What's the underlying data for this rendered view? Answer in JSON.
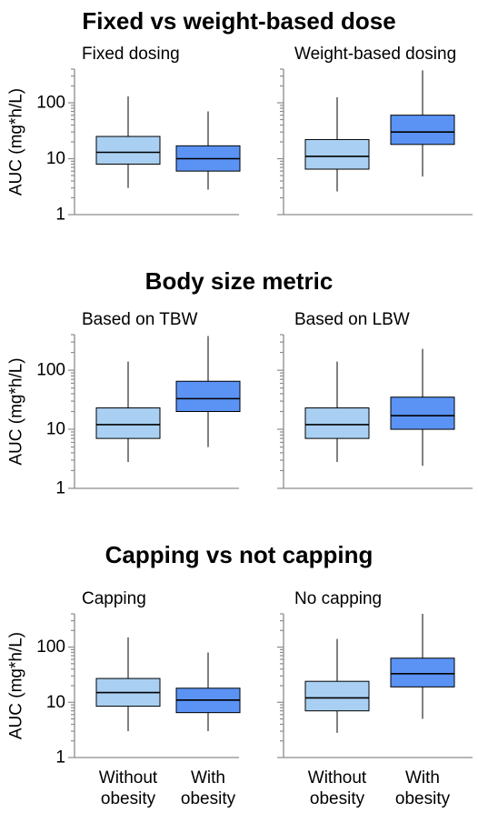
{
  "colors": {
    "without": "#a9d0f2",
    "with": "#5b93f5",
    "line": "#000000",
    "axis": "#8c8c8c"
  },
  "chart_data": [
    {
      "type": "box",
      "section_title": "Fixed vs weight-based dose",
      "title": "Fixed dosing",
      "ylabel": "AUC (mg*h/L)",
      "yscale": "log",
      "ylim": [
        1,
        400
      ],
      "yticks": [
        "1",
        "10",
        "100"
      ],
      "categories": [
        "Without obesity",
        "With obesity"
      ],
      "boxes": [
        {
          "name": "Without obesity",
          "min": 3,
          "q1": 8,
          "median": 13,
          "q3": 25,
          "max": 130
        },
        {
          "name": "With obesity",
          "min": 2.8,
          "q1": 6,
          "median": 10,
          "q3": 17,
          "max": 70
        }
      ]
    },
    {
      "type": "box",
      "title": "Weight-based dosing",
      "ylabel": "",
      "yscale": "log",
      "ylim": [
        1,
        400
      ],
      "yticks": [],
      "categories": [
        "Without obesity",
        "With obesity"
      ],
      "boxes": [
        {
          "name": "Without obesity",
          "min": 2.6,
          "q1": 6.5,
          "median": 11,
          "q3": 22,
          "max": 125
        },
        {
          "name": "With obesity",
          "min": 4.8,
          "q1": 18,
          "median": 30,
          "q3": 60,
          "max": 380
        }
      ]
    },
    {
      "type": "box",
      "section_title": "Body size metric",
      "title": "Based on TBW",
      "ylabel": "AUC (mg*h/L)",
      "yscale": "log",
      "ylim": [
        1,
        400
      ],
      "yticks": [
        "1",
        "10",
        "100"
      ],
      "categories": [
        "Without obesity",
        "With obesity"
      ],
      "boxes": [
        {
          "name": "Without obesity",
          "min": 2.8,
          "q1": 7,
          "median": 12,
          "q3": 23,
          "max": 140
        },
        {
          "name": "With obesity",
          "min": 5,
          "q1": 20,
          "median": 33,
          "q3": 65,
          "max": 380
        }
      ]
    },
    {
      "type": "box",
      "title": "Based on LBW",
      "ylabel": "",
      "yscale": "log",
      "ylim": [
        1,
        400
      ],
      "yticks": [],
      "categories": [
        "Without obesity",
        "With obesity"
      ],
      "boxes": [
        {
          "name": "Without obesity",
          "min": 2.8,
          "q1": 7,
          "median": 12,
          "q3": 23,
          "max": 140
        },
        {
          "name": "With obesity",
          "min": 2.4,
          "q1": 10,
          "median": 17,
          "q3": 35,
          "max": 230
        }
      ]
    },
    {
      "type": "box",
      "section_title": "Capping vs not capping",
      "title": "Capping",
      "ylabel": "AUC (mg*h/L)",
      "yscale": "log",
      "ylim": [
        1,
        400
      ],
      "yticks": [
        "1",
        "10",
        "100"
      ],
      "categories": [
        "Without obesity",
        "With obesity"
      ],
      "boxes": [
        {
          "name": "Without obesity",
          "min": 3,
          "q1": 8.5,
          "median": 15,
          "q3": 27,
          "max": 150
        },
        {
          "name": "With obesity",
          "min": 3,
          "q1": 6.5,
          "median": 11,
          "q3": 18,
          "max": 80
        }
      ]
    },
    {
      "type": "box",
      "title": "No capping",
      "ylabel": "",
      "yscale": "log",
      "ylim": [
        1,
        400
      ],
      "yticks": [],
      "categories": [
        "Without obesity",
        "With obesity"
      ],
      "boxes": [
        {
          "name": "Without obesity",
          "min": 2.8,
          "q1": 7,
          "median": 12,
          "q3": 24,
          "max": 140
        },
        {
          "name": "With obesity",
          "min": 5,
          "q1": 19,
          "median": 33,
          "q3": 63,
          "max": 400
        }
      ]
    }
  ],
  "x_category_labels": [
    {
      "line1": "Without",
      "line2": "obesity"
    },
    {
      "line1": "With",
      "line2": "obesity"
    }
  ]
}
